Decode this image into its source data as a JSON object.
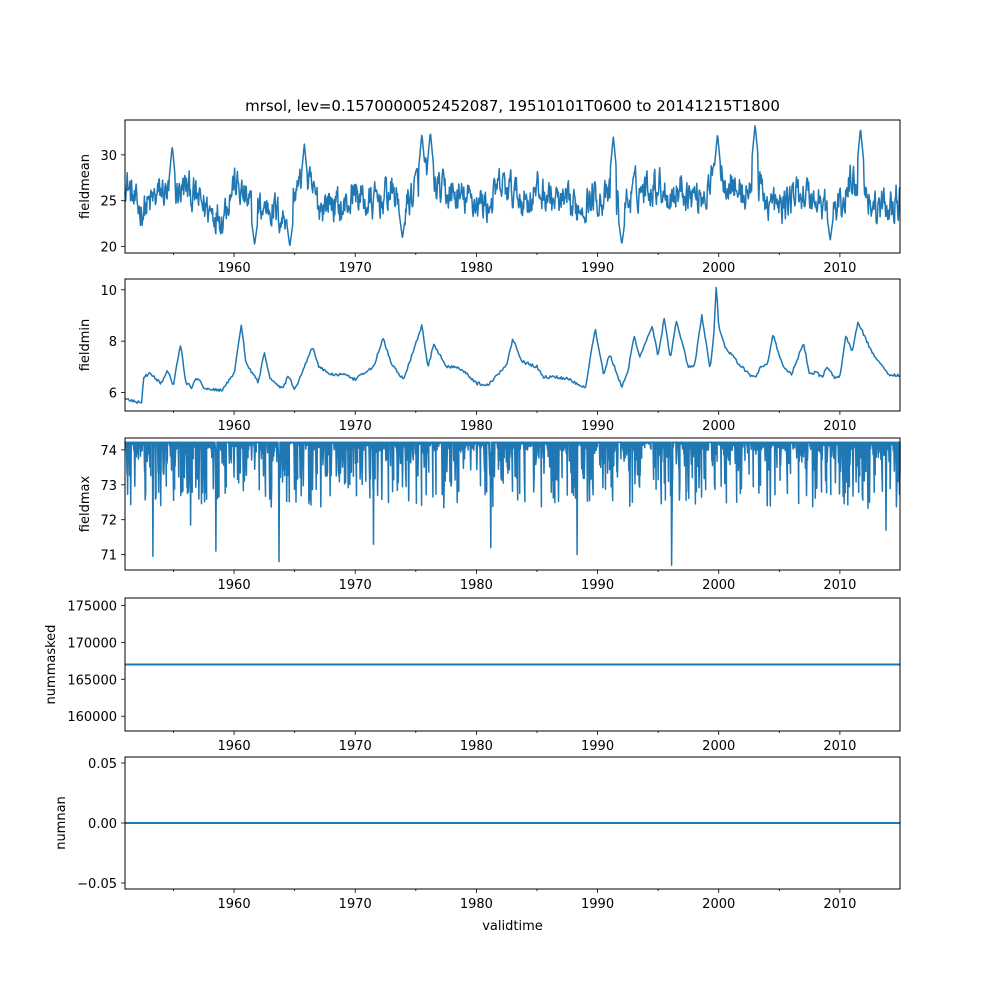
{
  "figure": {
    "title": "mrsol, lev=0.1570000052452087, 19510101T0600 to 20141215T1800",
    "xlabel": "validtime",
    "line_color": "#1f77b4"
  },
  "chart_data": [
    {
      "type": "line",
      "name": "fieldmean",
      "ylabel": "fieldmean",
      "xlim": [
        1951.0,
        2014.96
      ],
      "ylim": [
        19.3,
        33.8
      ],
      "xticks": [
        1960,
        1970,
        1980,
        1990,
        2000,
        2010
      ],
      "yticks": [
        20,
        25,
        30
      ],
      "pattern": "noisy",
      "x": [
        1951,
        1952,
        1953,
        1954,
        1955,
        1956,
        1957,
        1958,
        1959,
        1960,
        1961,
        1962,
        1963,
        1964,
        1965,
        1966,
        1967,
        1968,
        1969,
        1970,
        1971,
        1972,
        1973,
        1974,
        1975,
        1976,
        1977,
        1978,
        1979,
        1980,
        1981,
        1982,
        1983,
        1984,
        1985,
        1986,
        1987,
        1988,
        1989,
        1990,
        1991,
        1992,
        1993,
        1994,
        1995,
        1996,
        1997,
        1998,
        1999,
        2000,
        2001,
        2002,
        2003,
        2004,
        2005,
        2006,
        2007,
        2008,
        2009,
        2010,
        2011,
        2012,
        2013,
        2014,
        2015
      ],
      "values": [
        27.5,
        24.0,
        24.5,
        26.0,
        25.5,
        26.5,
        25.0,
        24.0,
        23.5,
        27.0,
        25.0,
        24.0,
        24.5,
        23.0,
        26.0,
        27.0,
        24.5,
        25.0,
        24.0,
        26.0,
        24.5,
        25.0,
        26.0,
        24.0,
        26.5,
        27.5,
        26.0,
        25.5,
        25.0,
        25.0,
        24.5,
        26.5,
        26.0,
        25.0,
        26.0,
        25.5,
        24.5,
        24.0,
        25.0,
        25.5,
        25.0,
        24.0,
        26.0,
        26.5,
        27.0,
        25.5,
        26.5,
        25.5,
        26.0,
        28.5,
        27.0,
        25.5,
        27.0,
        25.0,
        24.0,
        25.5,
        26.0,
        25.0,
        24.5,
        24.0,
        27.5,
        26.5,
        24.0,
        24.5,
        25.0
      ],
      "spike_years": [
        1954.9,
        1965.8,
        1975.5,
        1976.2,
        1991.3,
        1999.9,
        2003.0,
        2011.7
      ],
      "spike_values": [
        31.0,
        31.2,
        32.3,
        32.5,
        32.0,
        32.3,
        33.3,
        32.9
      ],
      "dip_years": [
        1961.7,
        1964.6,
        1973.9,
        1992.0,
        2009.2
      ],
      "dip_values": [
        20.2,
        20.0,
        20.9,
        20.2,
        20.7
      ]
    },
    {
      "type": "line",
      "name": "fieldmin",
      "ylabel": "fieldmin",
      "xlim": [
        1951.0,
        2014.96
      ],
      "ylim": [
        5.28,
        10.42
      ],
      "xticks": [
        1960,
        1970,
        1980,
        1990,
        2000,
        2010
      ],
      "yticks": [
        6,
        8,
        10
      ],
      "pattern": "smooth",
      "x": [
        1951.0,
        1952.0,
        1952.4,
        1952.5,
        1953.0,
        1954.0,
        1954.5,
        1955.0,
        1955.6,
        1956.0,
        1956.5,
        1957.0,
        1957.5,
        1958.0,
        1959.0,
        1960.0,
        1960.6,
        1961.0,
        1962.0,
        1962.5,
        1963.0,
        1964.0,
        1964.5,
        1965.0,
        1965.8,
        1966.5,
        1967.0,
        1968.0,
        1969.0,
        1970.0,
        1971.5,
        1972.3,
        1973.0,
        1974.0,
        1975.5,
        1976.0,
        1976.5,
        1977.5,
        1978.5,
        1979.5,
        1980.0,
        1981.0,
        1982.5,
        1983.0,
        1983.8,
        1985.0,
        1985.5,
        1986.5,
        1987.5,
        1988.5,
        1989.0,
        1989.8,
        1990.5,
        1991.0,
        1992.0,
        1992.5,
        1993.0,
        1993.5,
        1994.5,
        1995.0,
        1995.5,
        1996.0,
        1996.5,
        1997.5,
        1998.0,
        1998.6,
        1999.3,
        1999.6,
        1999.8,
        2000.0,
        2000.5,
        2001.5,
        2002.5,
        2003.0,
        2003.5,
        2004.0,
        2004.5,
        2005.0,
        2005.5,
        2006.0,
        2007.0,
        2007.5,
        2008.0,
        2008.5,
        2009.0,
        2009.5,
        2010.0,
        2010.5,
        2011.0,
        2011.5,
        2012.5,
        2013.5,
        2014.0,
        2014.5,
        2014.96
      ],
      "values": [
        5.75,
        5.62,
        5.62,
        6.55,
        6.75,
        6.35,
        6.85,
        6.3,
        7.9,
        6.4,
        6.2,
        6.6,
        6.2,
        6.1,
        6.1,
        6.7,
        8.65,
        7.1,
        6.4,
        7.6,
        6.5,
        6.15,
        6.65,
        6.1,
        7.0,
        7.8,
        7.0,
        6.7,
        6.7,
        6.5,
        7.0,
        8.1,
        7.1,
        6.5,
        8.6,
        7.0,
        7.9,
        7.0,
        7.0,
        6.6,
        6.35,
        6.3,
        7.1,
        8.1,
        7.2,
        7.0,
        6.6,
        6.6,
        6.55,
        6.3,
        6.2,
        8.5,
        6.7,
        7.5,
        6.2,
        6.8,
        8.2,
        7.4,
        8.6,
        7.4,
        8.9,
        7.3,
        8.75,
        7.0,
        7.0,
        9.0,
        6.9,
        8.3,
        10.2,
        8.6,
        7.8,
        7.2,
        6.7,
        6.6,
        7.0,
        7.1,
        8.3,
        7.4,
        6.9,
        6.7,
        7.9,
        6.7,
        6.8,
        6.6,
        7.0,
        6.6,
        6.6,
        8.2,
        7.6,
        8.75,
        7.7,
        7.0,
        6.7,
        6.7,
        6.65
      ]
    },
    {
      "type": "line",
      "name": "fieldmax",
      "ylabel": "fieldmax",
      "xlim": [
        1951.0,
        2014.96
      ],
      "ylim": [
        70.56,
        74.34
      ],
      "xticks": [
        1960,
        1970,
        1980,
        1990,
        2000,
        2010
      ],
      "yticks": [
        71,
        72,
        73,
        74
      ],
      "pattern": "cap-with-drops",
      "cap": 74.22,
      "drop_years": [
        1953.3,
        1956.4,
        1958.5,
        1963.7,
        1971.5,
        1981.2,
        1988.3,
        1996.1,
        2013.8
      ],
      "drop_values": [
        70.95,
        71.85,
        71.1,
        70.8,
        71.3,
        71.2,
        71.0,
        70.7,
        71.7
      ]
    },
    {
      "type": "line",
      "name": "nummasked",
      "ylabel": "nummasked",
      "xlim": [
        1951.0,
        2014.96
      ],
      "ylim": [
        158000,
        176000
      ],
      "xticks": [
        1960,
        1970,
        1980,
        1990,
        2000,
        2010
      ],
      "yticks": [
        160000,
        165000,
        170000,
        175000
      ],
      "pattern": "constant",
      "constant": 167000
    },
    {
      "type": "line",
      "name": "numnan",
      "ylabel": "numnan",
      "xlim": [
        1951.0,
        2014.96
      ],
      "ylim": [
        -0.055,
        0.055
      ],
      "xticks": [
        1960,
        1970,
        1980,
        1990,
        2000,
        2010
      ],
      "yticks": [
        -0.05,
        0.0,
        0.05
      ],
      "ytick_labels": [
        "−0.05",
        "0.00",
        "0.05"
      ],
      "pattern": "constant",
      "constant": 0.0
    }
  ]
}
